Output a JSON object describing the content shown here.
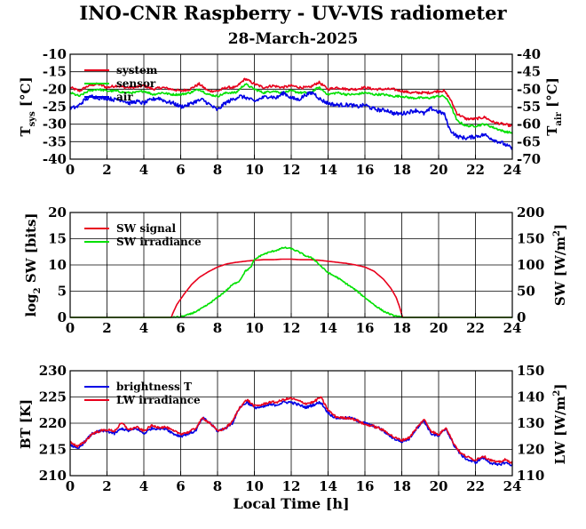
{
  "title": "INO-CNR Raspberry - UV-VIS radiometer",
  "subtitle": "28-March-2025",
  "xlabel": "Local Time [h]",
  "colors": {
    "red": "#e8001c",
    "green": "#00e000",
    "blue": "#0000e6",
    "grid": "#000000"
  },
  "chart_data": [
    {
      "type": "line",
      "name": "temperatures",
      "xlim": [
        0,
        24
      ],
      "xticks": [
        "0",
        "2",
        "4",
        "6",
        "8",
        "10",
        "12",
        "14",
        "16",
        "18",
        "20",
        "22",
        "24"
      ],
      "ylim_left": [
        -40,
        -10
      ],
      "yticks_left": [
        "-40",
        "-35",
        "-30",
        "-25",
        "-20",
        "-15",
        "-10"
      ],
      "ylabel_left": "T_sys [°C]",
      "ylim_right": [
        -70,
        -40
      ],
      "yticks_right": [
        "-70",
        "-65",
        "-60",
        "-55",
        "-50",
        "-45",
        "-40"
      ],
      "ylabel_right": "T_air [°C]",
      "legend": "top-left",
      "series": [
        {
          "name": "system",
          "color": "#e8001c",
          "axis": "left",
          "x": [
            0,
            0.5,
            1,
            1.5,
            2,
            2.5,
            3,
            3.5,
            4,
            4.5,
            5,
            5.5,
            6,
            6.5,
            7,
            7.5,
            8,
            8.5,
            9,
            9.5,
            10,
            10.5,
            11,
            11.5,
            12,
            12.5,
            13,
            13.5,
            14,
            14.5,
            15,
            15.5,
            16,
            16.5,
            17,
            17.5,
            18,
            18.5,
            19,
            19.5,
            20,
            20.3,
            20.6,
            21,
            21.5,
            22,
            22.5,
            23,
            23.5,
            24
          ],
          "y": [
            -19.5,
            -20.5,
            -19,
            -18.5,
            -19.5,
            -19,
            -19.5,
            -19.5,
            -19,
            -20,
            -19.5,
            -20,
            -20.5,
            -20,
            -18.5,
            -20.5,
            -20.5,
            -19.5,
            -19.5,
            -17,
            -18.5,
            -19.5,
            -19,
            -19.5,
            -19,
            -19.5,
            -19.5,
            -18,
            -20,
            -19.5,
            -20,
            -20,
            -19.5,
            -20,
            -20,
            -20,
            -20.5,
            -21,
            -21,
            -21,
            -20.5,
            -20.5,
            -22.5,
            -27,
            -28.5,
            -28.5,
            -28,
            -29.5,
            -30,
            -30.5
          ]
        },
        {
          "name": "sensor",
          "color": "#00e000",
          "axis": "left",
          "x": [
            0,
            0.5,
            1,
            1.5,
            2,
            2.5,
            3,
            3.5,
            4,
            4.5,
            5,
            5.5,
            6,
            6.5,
            7,
            7.5,
            8,
            8.5,
            9,
            9.5,
            10,
            10.5,
            11,
            11.5,
            12,
            12.5,
            13,
            13.5,
            14,
            14.5,
            15,
            15.5,
            16,
            16.5,
            17,
            17.5,
            18,
            18.5,
            19,
            19.5,
            20,
            20.3,
            20.6,
            21,
            21.5,
            22,
            22.5,
            23,
            23.5,
            24
          ],
          "y": [
            -21,
            -22,
            -20.5,
            -20,
            -20.5,
            -20.5,
            -21,
            -21,
            -20.5,
            -21.5,
            -21,
            -21.5,
            -21.5,
            -21,
            -20,
            -21.5,
            -22,
            -21,
            -21,
            -18.5,
            -20,
            -21,
            -20.5,
            -21,
            -20.5,
            -21,
            -21,
            -19.5,
            -21.5,
            -21,
            -21.5,
            -21.5,
            -21,
            -21.5,
            -21.5,
            -22,
            -22,
            -22.5,
            -22.5,
            -22.5,
            -22,
            -22,
            -24,
            -29,
            -30.5,
            -30.5,
            -30,
            -31,
            -32,
            -32.5
          ]
        },
        {
          "name": "air",
          "color": "#0000e6",
          "axis": "right",
          "x": [
            0,
            0.4,
            0.8,
            1.2,
            1.6,
            2,
            2.4,
            2.8,
            3.2,
            3.6,
            4,
            4.4,
            4.8,
            5.2,
            5.6,
            6,
            6.4,
            6.8,
            7.2,
            7.6,
            8,
            8.4,
            8.8,
            9.2,
            9.6,
            10,
            10.4,
            10.8,
            11.2,
            11.6,
            12,
            12.4,
            12.8,
            13.2,
            13.6,
            14,
            14.4,
            14.8,
            15.2,
            15.6,
            16,
            16.4,
            16.8,
            17.2,
            17.6,
            18,
            18.4,
            18.8,
            19.2,
            19.6,
            20,
            20.3,
            20.6,
            21,
            21.5,
            22,
            22.5,
            23,
            23.5,
            24
          ],
          "y": [
            -55.5,
            -55,
            -53,
            -52,
            -52.5,
            -52.5,
            -53,
            -53,
            -54,
            -53.5,
            -54,
            -53,
            -52.5,
            -53.5,
            -54,
            -55,
            -54.5,
            -53.5,
            -53,
            -54.5,
            -56,
            -54,
            -53,
            -52,
            -52.5,
            -53.5,
            -52.5,
            -52,
            -52.5,
            -51,
            -52.5,
            -53,
            -51.5,
            -51,
            -53,
            -54,
            -54.5,
            -54.5,
            -54.5,
            -55,
            -54.5,
            -55.5,
            -56,
            -56,
            -57,
            -57,
            -56.5,
            -56,
            -57,
            -55.5,
            -56.5,
            -57,
            -61.5,
            -63.5,
            -64,
            -63.5,
            -63,
            -64.5,
            -65.5,
            -67
          ]
        }
      ]
    },
    {
      "type": "line",
      "name": "shortwave",
      "xlim": [
        0,
        24
      ],
      "xticks": [
        "0",
        "2",
        "4",
        "6",
        "8",
        "10",
        "12",
        "14",
        "16",
        "18",
        "20",
        "22",
        "24"
      ],
      "ylim_left": [
        0,
        20
      ],
      "yticks_left": [
        "0",
        "5",
        "10",
        "15",
        "20"
      ],
      "ylabel_left": "log2 SW [bits]",
      "ylim_right": [
        0,
        200
      ],
      "yticks_right": [
        "0",
        "50",
        "100",
        "150",
        "200"
      ],
      "ylabel_right": "SW [W/m2]",
      "legend": "top-left",
      "series": [
        {
          "name": "SW signal",
          "color": "#e8001c",
          "axis": "left",
          "x": [
            0,
            5.5,
            5.55,
            5.8,
            6.2,
            6.6,
            7,
            7.5,
            8,
            8.5,
            9,
            9.5,
            10,
            10.5,
            11,
            11.5,
            12,
            12.5,
            13,
            13.5,
            14,
            14.5,
            15,
            15.5,
            16,
            16.5,
            17,
            17.4,
            17.7,
            17.9,
            18.0,
            18.05,
            24
          ],
          "y": [
            0,
            0,
            0.6,
            2.5,
            4.5,
            6.3,
            7.6,
            8.7,
            9.6,
            10.2,
            10.5,
            10.7,
            10.9,
            11,
            11,
            11.1,
            11.1,
            11,
            11,
            10.9,
            10.7,
            10.5,
            10.3,
            10,
            9.6,
            8.8,
            7.3,
            5.6,
            3.8,
            1.8,
            0.5,
            0,
            0
          ]
        },
        {
          "name": "SW irradiance",
          "color": "#00e000",
          "axis": "right",
          "x": [
            0,
            5.6,
            6,
            6.5,
            7,
            7.5,
            8,
            8.5,
            8.8,
            9.2,
            9.5,
            9.8,
            10,
            10.4,
            10.8,
            11.2,
            11.6,
            12,
            12.4,
            12.8,
            13.2,
            13.6,
            14,
            14.5,
            15,
            15.5,
            16,
            16.5,
            17,
            17.5,
            18,
            24
          ],
          "y": [
            0,
            0,
            1,
            6,
            14,
            25,
            38,
            52,
            62,
            70,
            88,
            95,
            110,
            119,
            124,
            128,
            133,
            131,
            125,
            117,
            112,
            98,
            85,
            76,
            64,
            52,
            38,
            24,
            12,
            4,
            0,
            0
          ]
        }
      ]
    },
    {
      "type": "line",
      "name": "longwave",
      "xlim": [
        0,
        24
      ],
      "xticks": [
        "0",
        "2",
        "4",
        "6",
        "8",
        "10",
        "12",
        "14",
        "16",
        "18",
        "20",
        "22",
        "24"
      ],
      "ylim_left": [
        210,
        230
      ],
      "yticks_left": [
        "210",
        "215",
        "220",
        "225",
        "230"
      ],
      "ylabel_left": "BT [K]",
      "ylim_right": [
        110,
        150
      ],
      "yticks_right": [
        "110",
        "120",
        "130",
        "140",
        "150"
      ],
      "ylabel_right": "LW [W/m2]",
      "legend": "top-left",
      "series": [
        {
          "name": "brightness T",
          "color": "#0000e6",
          "axis": "left",
          "x": [
            0,
            0.4,
            0.8,
            1.2,
            1.6,
            2,
            2.4,
            2.8,
            3.2,
            3.6,
            4,
            4.4,
            4.8,
            5.2,
            5.6,
            6,
            6.4,
            6.8,
            7.2,
            7.6,
            8,
            8.4,
            8.8,
            9.2,
            9.6,
            10,
            10.4,
            10.8,
            11.2,
            11.6,
            12,
            12.4,
            12.8,
            13.2,
            13.6,
            14,
            14.4,
            14.8,
            15.2,
            15.6,
            16,
            16.4,
            16.8,
            17.2,
            17.6,
            18,
            18.4,
            18.8,
            19.2,
            19.6,
            20,
            20.4,
            20.8,
            21.2,
            21.6,
            22,
            22.4,
            22.8,
            23.2,
            23.6,
            24
          ],
          "y": [
            216,
            215,
            216.5,
            218,
            218.5,
            218.5,
            218,
            219,
            218.5,
            219,
            218,
            219,
            219,
            219,
            218,
            217.5,
            218,
            218.5,
            221,
            220,
            218.5,
            219,
            220,
            223,
            224,
            223,
            223,
            223.5,
            223.5,
            224,
            224,
            223.5,
            223,
            223.5,
            224,
            222,
            221,
            221,
            221,
            220.5,
            220,
            219.5,
            219,
            218,
            217,
            216.5,
            217,
            219,
            220.5,
            218,
            217.5,
            219,
            216,
            214,
            213,
            212.5,
            213.5,
            212.5,
            212,
            212.5,
            212
          ]
        },
        {
          "name": "LW irradiance",
          "color": "#e8001c",
          "axis": "right",
          "x": [
            0,
            0.4,
            0.8,
            1.2,
            1.6,
            2,
            2.4,
            2.8,
            3.2,
            3.6,
            4,
            4.4,
            4.8,
            5.2,
            5.6,
            6,
            6.4,
            6.8,
            7.2,
            7.6,
            8,
            8.4,
            8.8,
            9.2,
            9.6,
            10,
            10.4,
            10.8,
            11.2,
            11.6,
            12,
            12.4,
            12.8,
            13.2,
            13.6,
            14,
            14.4,
            14.8,
            15.2,
            15.6,
            16,
            16.4,
            16.8,
            17.2,
            17.6,
            18,
            18.4,
            18.8,
            19.2,
            19.6,
            20,
            20.4,
            20.8,
            21.2,
            21.6,
            22,
            22.4,
            22.8,
            23.2,
            23.6,
            24
          ],
          "y": [
            123,
            121,
            123,
            126,
            127,
            127.5,
            127,
            130,
            127.5,
            128.5,
            127,
            129,
            128.5,
            128.5,
            127,
            126,
            126.5,
            128,
            132,
            130,
            127,
            128,
            130.5,
            136,
            139,
            136.5,
            137,
            138,
            138,
            139,
            139.5,
            138.5,
            137.5,
            138,
            140,
            135,
            132.5,
            132,
            132,
            131,
            129.5,
            129,
            128,
            126.5,
            124.5,
            123.5,
            124.5,
            128,
            131.5,
            127,
            125.5,
            128.5,
            122.5,
            118.5,
            117,
            116,
            117.5,
            116,
            115,
            116,
            115
          ]
        }
      ]
    }
  ]
}
